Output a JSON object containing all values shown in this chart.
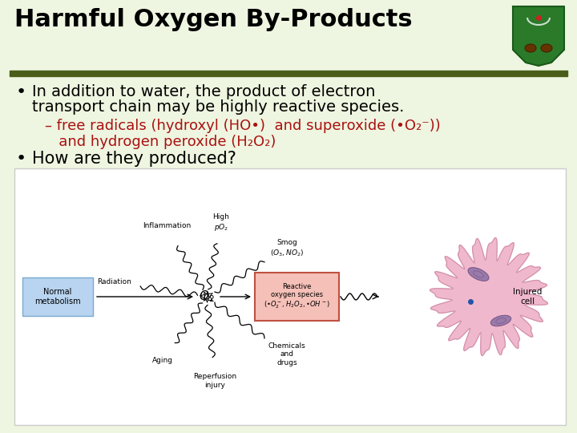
{
  "title": "Harmful Oxygen By-Products",
  "background_color": "#eef5e0",
  "title_color": "#000000",
  "title_fontsize": 22,
  "divider_color": "#4a5e1a",
  "bullet1_line1": "In addition to water, the product of electron",
  "bullet1_line2": "transport chain may be highly reactive species.",
  "bullet1_color": "#000000",
  "bullet1_fontsize": 14,
  "sub_bullet_color": "#aa1111",
  "sub_bullet_line1": "– free radicals (hydroxyl (HO•)  and superoxide (•O₂⁻))",
  "sub_bullet_line2": "   and hydrogen peroxide (H₂O₂)",
  "sub_bullet_fontsize": 13,
  "bullet2": "How are they produced?",
  "bullet2_color": "#000000",
  "bullet2_fontsize": 15,
  "panel_bg": "#ffffff",
  "panel_border": "#cccccc",
  "nm_box_face": "#b8d4f0",
  "nm_box_edge": "#7aaad0",
  "ros_box_face": "#f5c0b8",
  "ros_box_edge": "#c05040",
  "cell_color": "#f0b8cc",
  "cell_edge": "#d090a8",
  "organelle_color": "#9a7aaa",
  "organelle_edge": "#7a5a8a",
  "dot_color": "#2255aa"
}
